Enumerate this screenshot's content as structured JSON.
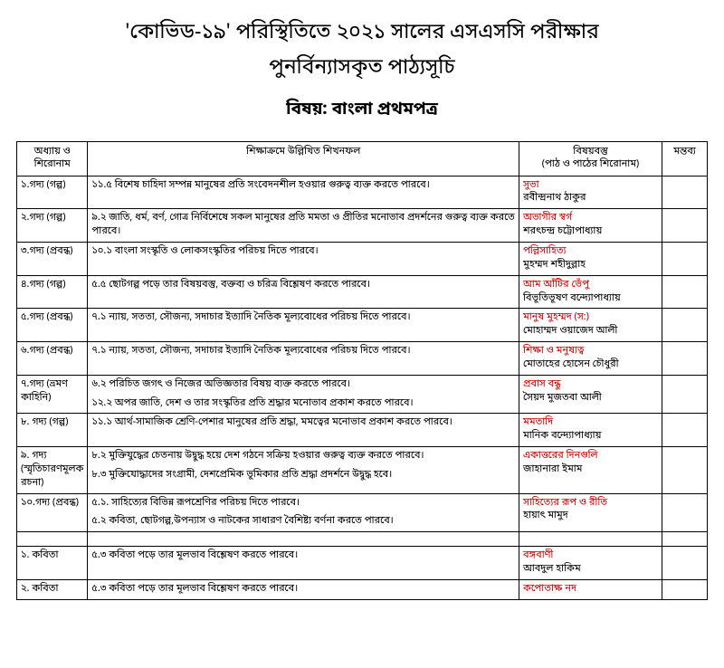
{
  "title_line1": "'কোভিড-১৯' পরিস্থিতিতে ২০২১ সালের এসএসসি পরীক্ষার",
  "title_line2": "পুনর্বিন্যাসকৃত পাঠ্যসূচি",
  "subtitle": "বিষয়: বাংলা প্রথমপত্র",
  "headers": {
    "chapter": "অধ্যায়  ও শিরোনাম",
    "outcome": "শিক্ষাক্রমে উল্লিখিত শিখনফল",
    "content_line1": "বিষয়বস্তু",
    "content_line2": "(পাঠ ও পাঠের শিরোনাম)",
    "remarks": "মন্তব্য"
  },
  "rows": [
    {
      "chapter": "১.গদ্য (গল্প)",
      "outcome": "১১.৫ বিশেষ চাহিদা সম্পন্ন মানুষের প্রতি সংবেদনশীল হওয়ার গুরুত্ব ব্যক্ত করতে পারবে।",
      "content_title": "সুভা",
      "content_author": "রবীন্দ্রনাথ ঠাকুর"
    },
    {
      "chapter": "২.গদ্য (গল্প)",
      "outcome": "৯.২ জাতি, ধর্ম, বর্ণ, গোত্র নির্বিশেষে সকল মানুষের প্রতি মমতা ও প্রীতির মনোভাব প্রদর্শনের গুরুত্ব ব্যক্ত করতে পারবে।",
      "content_title": "অভাগীর স্বর্গ",
      "content_author": "শরৎচন্দ্র চট্টোপাধ্যায়"
    },
    {
      "chapter": "৩.গদ্য (প্রবন্ধ)",
      "outcome": "১০.১ বাংলা সংস্কৃতি ও লোকসংস্কৃতির পরিচয় দিতে পারবে।",
      "content_title": "পল্লিসাহিত্য",
      "content_author": "মুহম্মদ শহীদুল্লাহ"
    },
    {
      "chapter": "৪.গদ্য (গল্প)",
      "outcome": "৫.৫ ছোটগল্প পড়ে তার বিষয়বস্তু, বক্তব্য ও চরিত্র বিশ্লেষণ করতে পারবে।",
      "content_title": "আম আঁটির ভেঁপু",
      "content_author": "বিভূতিভূষণ বন্দ্যোপাধ্যায়"
    },
    {
      "chapter": "৫.গদ্য (প্রবন্ধ)",
      "outcome": "৭.১ ন্যায়, সততা, সৌজন্য, সদাচার ইত্যাদি নৈতিক মূল্যবোধের পরিচয় দিতে পারবে।",
      "content_title": "মানুষ মুহম্মদ (স:)",
      "content_author": "মোহাম্মদ ওয়াজেদ আলী"
    },
    {
      "chapter": "৬.গদ্য (প্রবন্ধ)",
      "outcome": "৭.১ ন্যায়, সততা, সৌজন্য, সদাচার ইত্যাদি নৈতিক মূল্যবোধের পরিচয় দিতে পারবে।",
      "content_title": "শিক্ষা ও মনুষ্যত্ব",
      "content_author": "মোতাহের হোসেন চৌধুরী"
    },
    {
      "chapter": "৭.গদ্য (ভ্রমণ কাহিনি)",
      "outcome": "৬.২ পরিচিত জগৎ ও নিজের অভিজ্ঞতার বিষয় ব্যক্ত করতে পারবে।",
      "outcome2": "১২.২ অপর জাতি, দেশ ও তার সংস্কৃতির প্রতি শ্রদ্ধার মনোভাব প্রকাশ করতে পারবে।",
      "content_title": "প্রবাস বন্ধু",
      "content_author": "সৈয়দ মুজতবা আলী"
    },
    {
      "chapter": "৮. গদ্য (গল্প)",
      "outcome": "১১.১ আর্থ-সামাজিক শ্রেণি-পেশার মানুষের প্রতি শ্রদ্ধা, মমত্বের মনোভাব প্রকাশ করতে পারবে।",
      "content_title": "মমতাদি",
      "content_author": "মানিক বন্দ্যোপাধ্যায়"
    },
    {
      "chapter": "৯. গদ্য (স্মৃতিচারণমূলক রচনা)",
      "outcome": "৮.২ মুক্তিযুদ্ধের চেতনায় উদ্বুদ্ধ হয়ে দেশ গঠনে সক্রিয় হওয়ার গুরুত্ব ব্যক্ত করতে পারবে।",
      "outcome2": "৮.৩ মুক্তিযোদ্ধাদের সংগ্রামী, দেশপ্রেমিক ভূমিকার প্রতি শ্রদ্ধা প্রদর্শনে উদ্বুদ্ধ হবে।",
      "content_title": "একাত্তরের দিনগুলি",
      "content_author": "জাহানারা ইমাম"
    },
    {
      "chapter": "১০.গদ্য (প্রবন্ধ)",
      "outcome": "৫.১. সাহিত্যের বিভিন্ন রূপশ্রেণির পরিচয় দিতে পারবে।",
      "outcome2": "৫.২ কবিতা, ছোটগল্প,উপন্যাস ও নাটকের সাধারণ বৈশিষ্ট্য বর্ণনা করতে পারবে।",
      "content_title": "সাহিত্যের রূপ ও রীতি",
      "content_author": "হায়াৎ মামুদ"
    }
  ],
  "poem_rows": [
    {
      "chapter": "১. কবিতা",
      "outcome": "৫.৩ কবিতা পড়ে তার মূলভাব বিশ্লেষণ করতে পারবে।",
      "content_title": "বঙ্গবাণী",
      "content_author": "আবদুল হাকিম"
    },
    {
      "chapter": "২. কবিতা",
      "outcome": "৫.৩ কবিতা পড়ে তার মূলভাব বিশ্লেষণ করতে পারবে।",
      "content_title": "কপোতাক্ষ নদ",
      "content_author": ""
    }
  ]
}
